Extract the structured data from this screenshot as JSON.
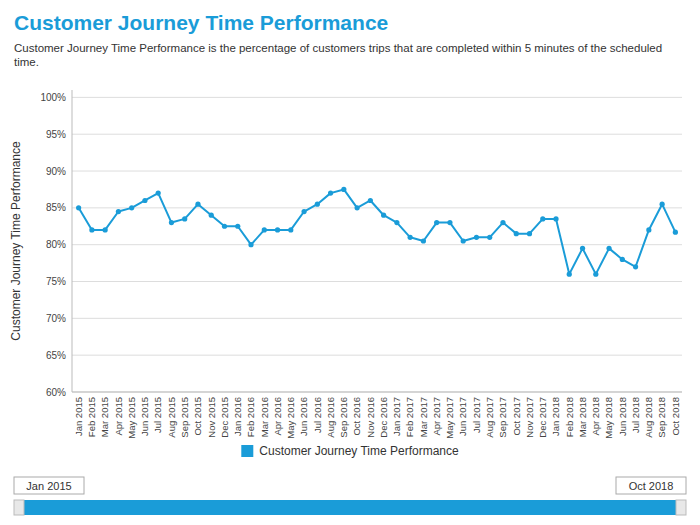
{
  "chart_data": {
    "type": "line",
    "title": "Customer Journey Time Performance",
    "subtitle": "Customer Journey Time Performance is the percentage of customers trips that are completed within 5 minutes of the scheduled time.",
    "y_label": "Customer Journey Time Performance",
    "categories": [
      "Jan 2015",
      "Feb 2015",
      "Mar 2015",
      "Apr 2015",
      "May 2015",
      "Jun 2015",
      "Jul 2015",
      "Aug 2015",
      "Sep 2015",
      "Oct 2015",
      "Nov 2015",
      "Dec 2015",
      "Jan 2016",
      "Feb 2016",
      "Mar 2016",
      "Apr 2016",
      "May 2016",
      "Jun 2016",
      "Jul 2016",
      "Aug 2016",
      "Sep 2016",
      "Oct 2016",
      "Nov 2016",
      "Dec 2016",
      "Jan 2017",
      "Feb 2017",
      "Mar 2017",
      "Apr 2017",
      "May 2017",
      "Jun 2017",
      "Jul 2017",
      "Aug 2017",
      "Sep 2017",
      "Oct 2017",
      "Nov 2017",
      "Dec 2017",
      "Jan 2018",
      "Feb 2018",
      "Mar 2018",
      "Apr 2018",
      "May 2018",
      "Jun 2018",
      "Jul 2018",
      "Aug 2018",
      "Sep 2018",
      "Oct 2018"
    ],
    "series": [
      {
        "name": "Customer Journey Time Performance",
        "color": "#1a9cd8",
        "marker": "circle",
        "values": [
          85,
          82,
          82,
          84.5,
          85,
          86,
          87,
          83,
          83.5,
          85.5,
          84,
          82.5,
          82.5,
          80,
          82,
          82,
          82,
          84.5,
          85.5,
          87,
          87.5,
          85,
          86,
          84,
          83,
          81,
          80.5,
          83,
          83,
          80.5,
          81,
          81,
          83,
          81.5,
          81.5,
          83.5,
          83.5,
          76,
          79.5,
          76,
          79.5,
          78,
          77,
          82,
          85.5,
          81.7
        ]
      }
    ],
    "ylim": [
      60,
      101
    ],
    "yticks": [
      {
        "value": 60,
        "label": "60%"
      },
      {
        "value": 65,
        "label": "65%"
      },
      {
        "value": 70,
        "label": "70%"
      },
      {
        "value": 75,
        "label": "75%"
      },
      {
        "value": 80,
        "label": "80%"
      },
      {
        "value": 85,
        "label": "85%"
      },
      {
        "value": 90,
        "label": "90%"
      },
      {
        "value": 95,
        "label": "95%"
      },
      {
        "value": 100,
        "label": "100%"
      }
    ],
    "grid": true,
    "legend": "bottom",
    "annotations": [
      "Jan 2015",
      "Oct 2018"
    ]
  }
}
